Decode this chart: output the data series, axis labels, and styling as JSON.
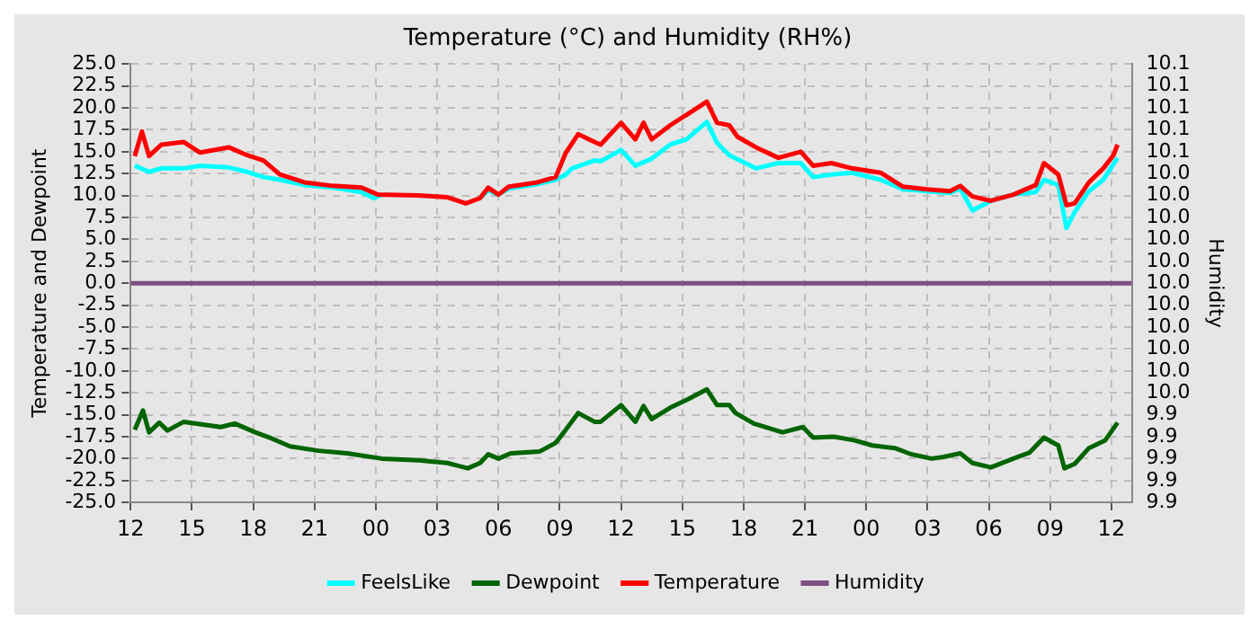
{
  "chart_data": {
    "type": "line",
    "title": "Temperature (°C) and Humidity (RH%)",
    "ylabel": "Temperature and Dewpoint",
    "y2label": "Humidity",
    "xlim": [
      12,
      61
    ],
    "xticks": [
      {
        "value": 12,
        "label": "12"
      },
      {
        "value": 15,
        "label": "15"
      },
      {
        "value": 18,
        "label": "18"
      },
      {
        "value": 21,
        "label": "21"
      },
      {
        "value": 24,
        "label": "00"
      },
      {
        "value": 27,
        "label": "03"
      },
      {
        "value": 30,
        "label": "06"
      },
      {
        "value": 33,
        "label": "09"
      },
      {
        "value": 36,
        "label": "12"
      },
      {
        "value": 39,
        "label": "15"
      },
      {
        "value": 42,
        "label": "18"
      },
      {
        "value": 45,
        "label": "21"
      },
      {
        "value": 48,
        "label": "00"
      },
      {
        "value": 51,
        "label": "03"
      },
      {
        "value": 54,
        "label": "06"
      },
      {
        "value": 57,
        "label": "09"
      },
      {
        "value": 60,
        "label": "12"
      }
    ],
    "ylim": [
      -25,
      25
    ],
    "yticks": [
      {
        "value": -25,
        "label": "-25.0"
      },
      {
        "value": -22.5,
        "label": "-22.5"
      },
      {
        "value": -20,
        "label": "-20.0"
      },
      {
        "value": -17.5,
        "label": "-17.5"
      },
      {
        "value": -15,
        "label": "-15.0"
      },
      {
        "value": -12.5,
        "label": "-12.5"
      },
      {
        "value": -10,
        "label": "-10.0"
      },
      {
        "value": -7.5,
        "label": "-7.5"
      },
      {
        "value": -5,
        "label": "-5.0"
      },
      {
        "value": -2.5,
        "label": "-2.5"
      },
      {
        "value": 0,
        "label": "0.0"
      },
      {
        "value": 2.5,
        "label": "2.5"
      },
      {
        "value": 5,
        "label": "5.0"
      },
      {
        "value": 7.5,
        "label": "7.5"
      },
      {
        "value": 10,
        "label": "10.0"
      },
      {
        "value": 12.5,
        "label": "12.5"
      },
      {
        "value": 15,
        "label": "15.0"
      },
      {
        "value": 17.5,
        "label": "17.5"
      },
      {
        "value": 20,
        "label": "20.0"
      },
      {
        "value": 22.5,
        "label": "22.5"
      },
      {
        "value": 25,
        "label": "25.0"
      }
    ],
    "y2lim": [
      9.9,
      10.1
    ],
    "y2ticks": [
      {
        "value": 9.9,
        "label": "9.9"
      },
      {
        "value": 9.91,
        "label": "9.9"
      },
      {
        "value": 9.92,
        "label": "9.9"
      },
      {
        "value": 9.93,
        "label": "9.9"
      },
      {
        "value": 9.94,
        "label": "9.9"
      },
      {
        "value": 9.95,
        "label": "10.0"
      },
      {
        "value": 9.96,
        "label": "10.0"
      },
      {
        "value": 9.97,
        "label": "10.0"
      },
      {
        "value": 9.98,
        "label": "10.0"
      },
      {
        "value": 9.99,
        "label": "10.0"
      },
      {
        "value": 10,
        "label": "10.0"
      },
      {
        "value": 10.01,
        "label": "10.0"
      },
      {
        "value": 10.02,
        "label": "10.0"
      },
      {
        "value": 10.03,
        "label": "10.0"
      },
      {
        "value": 10.04,
        "label": "10.0"
      },
      {
        "value": 10.05,
        "label": "10.0"
      },
      {
        "value": 10.06,
        "label": "10.1"
      },
      {
        "value": 10.07,
        "label": "10.1"
      },
      {
        "value": 10.08,
        "label": "10.1"
      },
      {
        "value": 10.09,
        "label": "10.1"
      },
      {
        "value": 10.1,
        "label": "10.1"
      }
    ],
    "grid": true,
    "legend": "bottom",
    "line_style": "solid",
    "marker": "none",
    "series": [
      {
        "name": "FeelsLike",
        "color": "#00ffff",
        "x": [
          12.2,
          12.9,
          13.5,
          14.6,
          15.4,
          16.8,
          17.7,
          18.5,
          19.3,
          20.5,
          21.9,
          23.3,
          23.9,
          24.3,
          26.1,
          27.5,
          28.4,
          29.1,
          29.5,
          30,
          30.5,
          31.9,
          32.8,
          33.3,
          33.6,
          34.7,
          35,
          36,
          36.7,
          37.5,
          38.4,
          39.2,
          40.2,
          40.7,
          41.3,
          42.6,
          43.7,
          44.8,
          45.4,
          46.3,
          47.3,
          48.7,
          49.8,
          51,
          52.1,
          52.6,
          53.2,
          54.1,
          55.2,
          56.3,
          56.7,
          57.4,
          57.8,
          58.2,
          58.9,
          59.6,
          60.3
        ],
        "values": [
          13.4,
          12.7,
          13.1,
          13.1,
          13.4,
          13.2,
          12.7,
          12.1,
          11.8,
          11.2,
          10.9,
          10.4,
          9.7,
          10.1,
          null,
          null,
          null,
          9.7,
          10.6,
          10.1,
          10.8,
          11.3,
          11.8,
          12.4,
          13.1,
          14.0,
          13.9,
          15.2,
          13.4,
          14.2,
          15.8,
          16.4,
          18.4,
          16.0,
          14.6,
          13.1,
          13.7,
          13.7,
          12.1,
          12.4,
          12.6,
          11.8,
          10.7,
          10.5,
          10.3,
          10.8,
          8.3,
          9.4,
          10.1,
          10.4,
          11.8,
          11.2,
          6.3,
          8.1,
          10.5,
          11.8,
          14.3
        ]
      },
      {
        "name": "Dewpoint",
        "color": "#006400",
        "x": [
          12.2,
          12.6,
          12.9,
          13.4,
          13.8,
          14.6,
          16.4,
          17.1,
          18.1,
          18.9,
          19.8,
          21.2,
          22.6,
          24.3,
          26.1,
          27.5,
          28.5,
          29.1,
          29.5,
          30,
          30.6,
          32,
          32.8,
          33.2,
          33.9,
          34.7,
          35,
          36,
          36.7,
          37.1,
          37.5,
          38.4,
          39.3,
          40.2,
          40.7,
          41.3,
          41.6,
          42.5,
          43.9,
          44.9,
          45.4,
          46.4,
          47.4,
          48.3,
          49.4,
          50.2,
          51.2,
          51.8,
          52.6,
          53.2,
          54.1,
          55.2,
          56,
          56.7,
          57.4,
          57.7,
          58.2,
          58.9,
          59.7,
          60.3
        ],
        "values": [
          -16.7,
          -14.5,
          -17.0,
          -15.9,
          -16.8,
          -15.8,
          -16.4,
          -16.0,
          -17.0,
          -17.7,
          -18.6,
          -19.1,
          -19.4,
          -20.0,
          -20.2,
          -20.5,
          -21.1,
          -20.5,
          -19.5,
          -20.0,
          -19.4,
          -19.2,
          -18.2,
          -17.0,
          -14.8,
          -15.8,
          -15.8,
          -13.9,
          -15.8,
          -14.0,
          -15.5,
          -14.2,
          -13.2,
          -12.1,
          -13.9,
          -13.9,
          -14.8,
          -16.0,
          -17.0,
          -16.4,
          -17.6,
          -17.5,
          -17.9,
          -18.5,
          -18.8,
          -19.5,
          -20.0,
          -19.8,
          -19.4,
          -20.5,
          -21.0,
          -20.0,
          -19.3,
          -17.6,
          -18.5,
          -21.1,
          -20.6,
          -18.8,
          -17.9,
          -15.9
        ]
      },
      {
        "name": "Temperature",
        "color": "#ff0000",
        "x": [
          12.2,
          12.55,
          12.9,
          13.5,
          14.6,
          15.4,
          16.8,
          17.7,
          18.5,
          19.3,
          20.5,
          21.9,
          23.3,
          24.1,
          26.1,
          27.5,
          28.4,
          29.1,
          29.5,
          30,
          30.5,
          31.9,
          32.8,
          33.3,
          33.9,
          34.7,
          35,
          36,
          36.7,
          37.1,
          37.5,
          38.4,
          39.2,
          40.2,
          40.7,
          41.3,
          41.7,
          42.6,
          43.7,
          44.8,
          45.4,
          46.3,
          47.3,
          48.7,
          49.8,
          51,
          52.1,
          52.6,
          53.2,
          54.1,
          55.2,
          56.3,
          56.7,
          57.4,
          57.8,
          58.2,
          58.9,
          59.6,
          60.1,
          60.3
        ],
        "values": [
          14.5,
          17.3,
          14.5,
          15.8,
          16.1,
          14.9,
          15.5,
          14.6,
          14.0,
          12.4,
          11.5,
          11.1,
          10.9,
          10.1,
          10.0,
          9.8,
          9.1,
          9.7,
          10.9,
          10.1,
          11.0,
          11.5,
          12.1,
          14.9,
          17.0,
          16.1,
          15.8,
          18.3,
          16.4,
          18.3,
          16.4,
          18.0,
          19.2,
          20.7,
          18.3,
          18.0,
          16.7,
          15.5,
          14.3,
          15.0,
          13.4,
          13.7,
          13.1,
          12.6,
          11.0,
          10.7,
          10.5,
          11.1,
          9.9,
          9.4,
          10.1,
          11.2,
          13.7,
          12.4,
          8.9,
          9.1,
          11.5,
          13.1,
          14.6,
          15.8
        ]
      },
      {
        "name": "Humidity",
        "color": "#7b4f7f",
        "axis": "y2",
        "x": [
          12,
          61
        ],
        "values": [
          10.0,
          10.0
        ]
      }
    ]
  }
}
